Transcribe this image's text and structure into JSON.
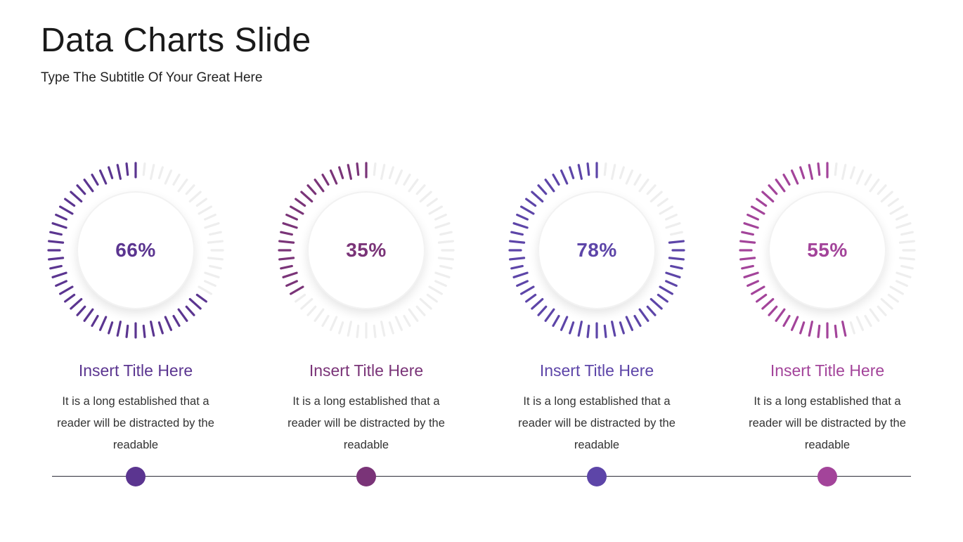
{
  "slide": {
    "title": "Data Charts Slide",
    "subtitle": "Type The Subtitle Of Your Great Here"
  },
  "chart_data": {
    "type": "gauge",
    "items": [
      {
        "value": 66,
        "label": "66%",
        "color": "#5b3590",
        "title": "Insert Title Here",
        "body": "It is a long established that a reader will be distracted by the readable"
      },
      {
        "value": 35,
        "label": "35%",
        "color": "#7a3478",
        "title": "Insert Title Here",
        "body": "It is a long established that a reader will be distracted by the readable"
      },
      {
        "value": 78,
        "label": "78%",
        "color": "#5d45a8",
        "title": "Insert Title Here",
        "body": "It is a long established that a reader will be distracted by the readable"
      },
      {
        "value": 55,
        "label": "55%",
        "color": "#a3449a",
        "title": "Insert Title Here",
        "body": "It is a long established that a reader will be distracted by the readable"
      }
    ],
    "inactive_tick_color": "#eeeeee",
    "timeline_color": "#2e2e3a"
  }
}
